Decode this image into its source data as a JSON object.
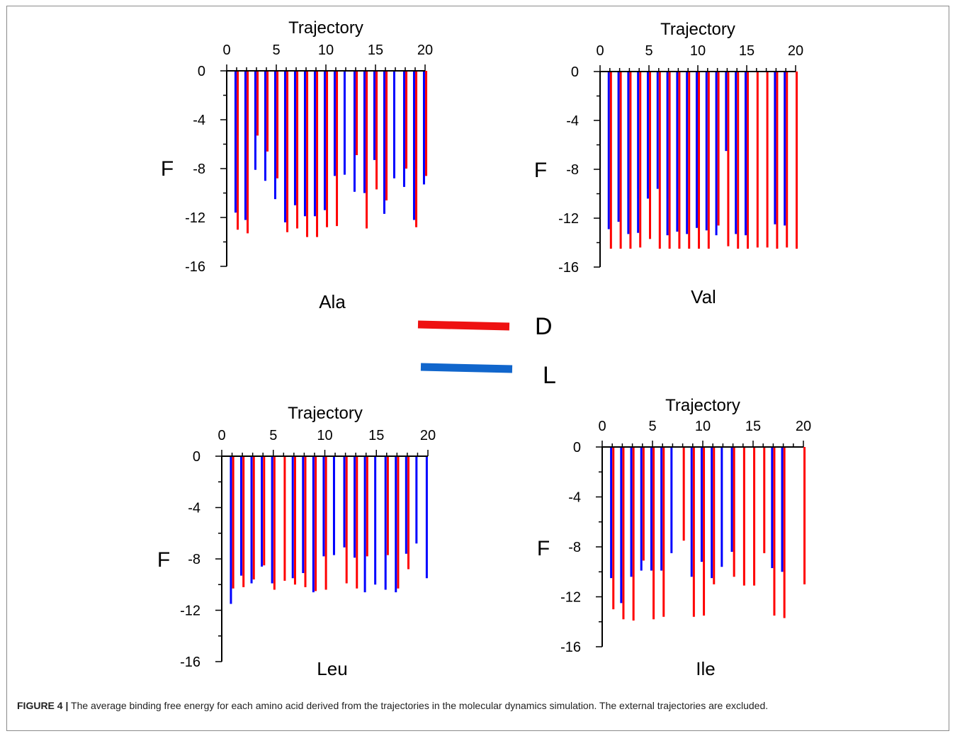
{
  "caption": {
    "label": "FIGURE 4 |",
    "text": " The average binding free energy for each amino acid derived from the trajectories in the molecular dynamics simulation. The external trajectories are excluded."
  },
  "legend": [
    {
      "label": "D",
      "color": "#ee1111"
    },
    {
      "label": "L",
      "color": "#1166cc"
    }
  ],
  "colors": {
    "D": "#ff0000",
    "L": "#0000ff",
    "axis": "#000000"
  },
  "chart_data": [
    {
      "type": "bar",
      "title": "Ala",
      "xlabel": "Trajectory",
      "ylabel": "F",
      "xlim": [
        0,
        20
      ],
      "ylim": [
        -16,
        0
      ],
      "xticks": [
        0,
        5,
        10,
        15,
        20
      ],
      "yticks": [
        0,
        -4,
        -8,
        -12,
        -16
      ],
      "x_axis_position": "top",
      "series": [
        {
          "name": "L",
          "x": [
            1,
            2,
            3,
            4,
            5,
            6,
            7,
            8,
            9,
            10,
            11,
            12,
            13,
            14,
            15,
            16,
            17,
            18,
            19,
            20
          ],
          "values": [
            -11.6,
            -12.2,
            -8.1,
            -9.0,
            -10.5,
            -12.4,
            -11.0,
            -11.9,
            -11.9,
            -11.4,
            -8.6,
            -8.5,
            -9.9,
            -10.0,
            -7.3,
            -11.7,
            -8.8,
            -9.5,
            -12.2,
            -9.3
          ]
        },
        {
          "name": "D",
          "x": [
            1,
            2,
            3,
            4,
            5,
            6,
            7,
            8,
            9,
            10,
            11,
            12,
            13,
            14,
            15,
            16,
            17,
            18,
            19,
            20
          ],
          "values": [
            -13.0,
            -13.3,
            -5.3,
            -6.6,
            -8.8,
            -13.2,
            -12.9,
            -13.6,
            -13.6,
            -12.8,
            -12.7,
            null,
            -6.9,
            -12.9,
            -9.7,
            -10.6,
            null,
            -8.0,
            -12.8,
            -8.6
          ]
        }
      ]
    },
    {
      "type": "bar",
      "title": "Val",
      "xlabel": "Trajectory",
      "ylabel": "F",
      "xlim": [
        0,
        20
      ],
      "ylim": [
        -16,
        0
      ],
      "xticks": [
        0,
        5,
        10,
        15,
        20
      ],
      "yticks": [
        0,
        -4,
        -8,
        -12,
        -16
      ],
      "x_axis_position": "top",
      "series": [
        {
          "name": "L",
          "x": [
            1,
            2,
            3,
            4,
            5,
            6,
            7,
            8,
            9,
            10,
            11,
            12,
            13,
            14,
            15,
            16,
            17,
            18,
            19,
            20
          ],
          "values": [
            -12.9,
            -12.3,
            -13.3,
            -13.2,
            -10.4,
            -9.6,
            -13.4,
            -13.1,
            -13.3,
            -12.8,
            -13.0,
            -13.4,
            -6.5,
            -13.3,
            -13.4,
            null,
            null,
            -12.5,
            -12.6,
            null
          ]
        },
        {
          "name": "D",
          "x": [
            1,
            2,
            3,
            4,
            5,
            6,
            7,
            8,
            9,
            10,
            11,
            12,
            13,
            14,
            15,
            16,
            17,
            18,
            19,
            20
          ],
          "values": [
            -14.5,
            -14.5,
            -14.5,
            -14.4,
            -13.7,
            -14.5,
            -14.5,
            -14.5,
            -14.5,
            -14.5,
            -14.5,
            -12.6,
            -14.3,
            -14.5,
            -14.5,
            -14.4,
            -14.4,
            -14.5,
            -14.4,
            -14.5
          ]
        }
      ]
    },
    {
      "type": "bar",
      "title": "Leu",
      "xlabel": "Trajectory",
      "ylabel": "F",
      "xlim": [
        0,
        20
      ],
      "ylim": [
        -16,
        0
      ],
      "xticks": [
        0,
        5,
        10,
        15,
        20
      ],
      "yticks": [
        0,
        -4,
        -8,
        -12,
        -16
      ],
      "x_axis_position": "top",
      "series": [
        {
          "name": "L",
          "x": [
            1,
            2,
            3,
            4,
            5,
            6,
            7,
            8,
            9,
            10,
            11,
            12,
            13,
            14,
            15,
            16,
            17,
            18,
            19,
            20
          ],
          "values": [
            -11.5,
            -9.3,
            -9.9,
            -8.6,
            -9.9,
            null,
            -9.5,
            -9.1,
            -10.6,
            -7.8,
            -7.7,
            -7.1,
            -7.9,
            -10.6,
            -10.0,
            -10.4,
            -10.6,
            -7.6,
            -6.8,
            -9.5
          ]
        },
        {
          "name": "D",
          "x": [
            1,
            2,
            3,
            4,
            5,
            6,
            7,
            8,
            9,
            10,
            11,
            12,
            13,
            14,
            15,
            16,
            17,
            18,
            19,
            20
          ],
          "values": [
            -10.3,
            -10.2,
            -9.6,
            -8.5,
            -10.4,
            -9.7,
            -10.0,
            -10.2,
            -10.5,
            -10.4,
            null,
            -9.9,
            -10.3,
            -7.8,
            null,
            -7.7,
            -10.3,
            -8.8,
            null,
            null
          ]
        }
      ]
    },
    {
      "type": "bar",
      "title": "Ile",
      "xlabel": "Trajectory",
      "ylabel": "F",
      "xlim": [
        0,
        20
      ],
      "ylim": [
        -16,
        0
      ],
      "xticks": [
        0,
        5,
        10,
        15,
        20
      ],
      "yticks": [
        0,
        -4,
        -8,
        -12,
        -16
      ],
      "x_axis_position": "top",
      "series": [
        {
          "name": "L",
          "x": [
            1,
            2,
            3,
            4,
            5,
            6,
            7,
            8,
            9,
            10,
            11,
            12,
            13,
            14,
            15,
            16,
            17,
            18,
            19,
            20
          ],
          "values": [
            -10.5,
            -12.5,
            -10.4,
            -9.9,
            -9.9,
            -9.9,
            -8.5,
            null,
            -10.4,
            -9.2,
            -10.5,
            -9.6,
            -8.4,
            null,
            null,
            null,
            -9.7,
            -10.0,
            null,
            null
          ]
        },
        {
          "name": "D",
          "x": [
            1,
            2,
            3,
            4,
            5,
            6,
            7,
            8,
            9,
            10,
            11,
            12,
            13,
            14,
            15,
            16,
            17,
            18,
            19,
            20
          ],
          "values": [
            -13.0,
            -13.8,
            -13.9,
            -9.1,
            -13.8,
            -13.6,
            null,
            -7.5,
            -13.6,
            -13.5,
            -11.0,
            null,
            -10.4,
            -11.1,
            -11.1,
            -8.5,
            -13.5,
            -13.7,
            null,
            -11.0
          ]
        }
      ]
    }
  ]
}
